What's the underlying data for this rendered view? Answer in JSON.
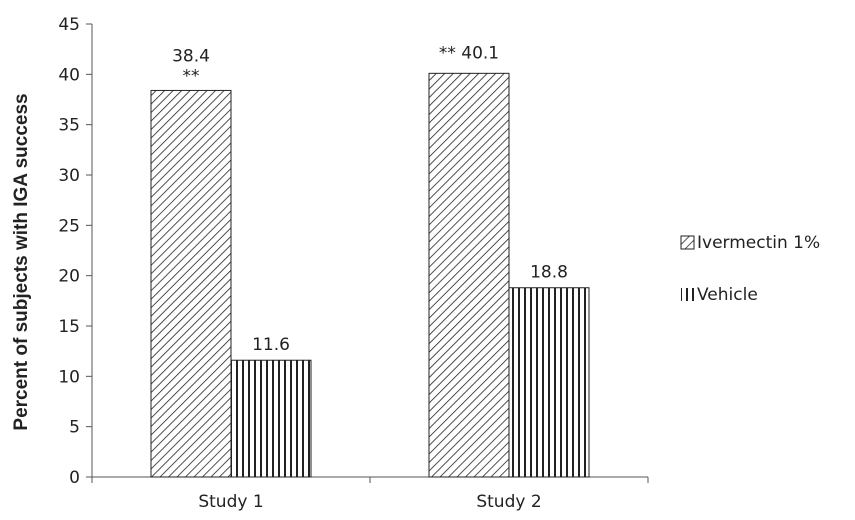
{
  "chart_data": {
    "type": "bar",
    "ylabel": "Percent of subjects with IGA success",
    "xlabel": "",
    "ylim": [
      0,
      45
    ],
    "yticks": [
      0,
      5,
      10,
      15,
      20,
      25,
      30,
      35,
      40,
      45
    ],
    "categories": [
      "Study 1",
      "Study 2"
    ],
    "series": [
      {
        "name": "Ivermectin 1%",
        "values": [
          38.4,
          40.1
        ],
        "pattern": "diagonal-hatch"
      },
      {
        "name": "Vehicle",
        "values": [
          11.6,
          18.8
        ],
        "pattern": "vertical-hatch"
      }
    ],
    "data_labels": [
      [
        "38.4",
        "40.1"
      ],
      [
        "11.6",
        "18.8"
      ]
    ],
    "significance_markers": [
      "**",
      "**"
    ],
    "legend_position": "right",
    "grid": false
  }
}
